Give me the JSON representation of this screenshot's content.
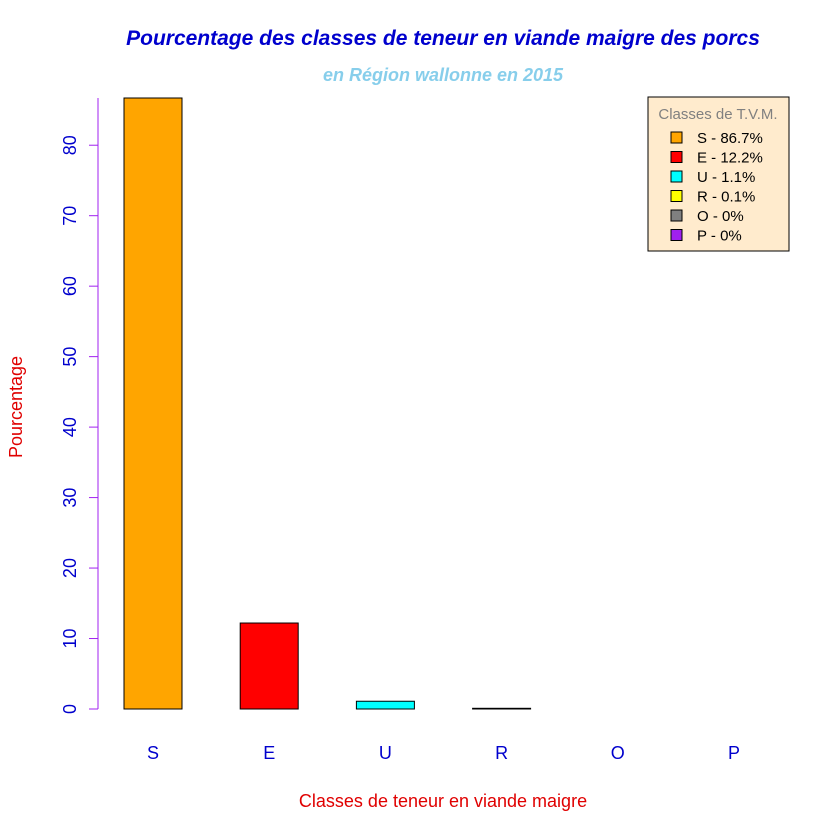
{
  "chart_data": {
    "type": "bar",
    "title": "Pourcentage des classes de teneur en viande maigre des porcs",
    "subtitle": "en Région wallonne en 2015",
    "xlabel": "Classes de teneur en viande maigre",
    "ylabel": "Pourcentage",
    "categories": [
      "S",
      "E",
      "U",
      "R",
      "O",
      "P"
    ],
    "values": [
      86.7,
      12.2,
      1.1,
      0.1,
      0,
      0
    ],
    "colors": [
      "#FFA500",
      "#FF0000",
      "#00FFFF",
      "#FFFF00",
      "#808080",
      "#A020F0"
    ],
    "ylim": [
      0,
      86.7
    ],
    "yticks": [
      0,
      10,
      20,
      30,
      40,
      50,
      60,
      70,
      80
    ],
    "grid": false,
    "legend": {
      "title": "Classes de T.V.M.",
      "position": "top-right",
      "entries": [
        "S - 86.7%",
        "E - 12.2%",
        "U - 1.1%",
        "R - 0.1%",
        "O - 0%",
        "P - 0%"
      ]
    },
    "style": {
      "title_color": "#0000CD",
      "subtitle_color": "#87CEEB",
      "axis_label_color": "#E00000",
      "tick_label_color": "#0000CD",
      "axis_line_color": "#A020F0",
      "legend_bg": "#FFEBCD",
      "legend_title_color": "#808080"
    }
  }
}
